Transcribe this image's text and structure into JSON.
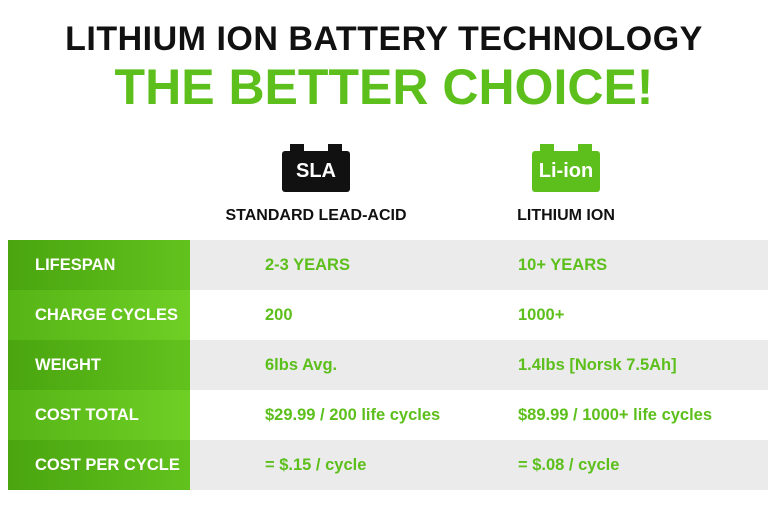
{
  "header": {
    "title": "LITHIUM ION BATTERY TECHNOLOGY",
    "subtitle": "THE BETTER CHOICE!"
  },
  "columns": [
    {
      "badge": "SLA",
      "label": "STANDARD LEAD-ACID"
    },
    {
      "badge": "Li-ion",
      "label": "LITHIUM ION"
    }
  ],
  "table": {
    "rows": [
      [
        "LIFESPAN",
        "2-3 YEARS",
        "10+ YEARS"
      ],
      [
        "CHARGE CYCLES",
        "200",
        "1000+"
      ],
      [
        "WEIGHT",
        "6lbs Avg.",
        "1.4lbs [Norsk 7.5Ah]"
      ],
      [
        "COST TOTAL",
        "$29.99 / 200 life cycles",
        "$89.99 / 1000+ life cycles"
      ],
      [
        "COST PER CYCLE",
        "= $.15 / cycle",
        "= $.08 / cycle"
      ]
    ]
  }
}
